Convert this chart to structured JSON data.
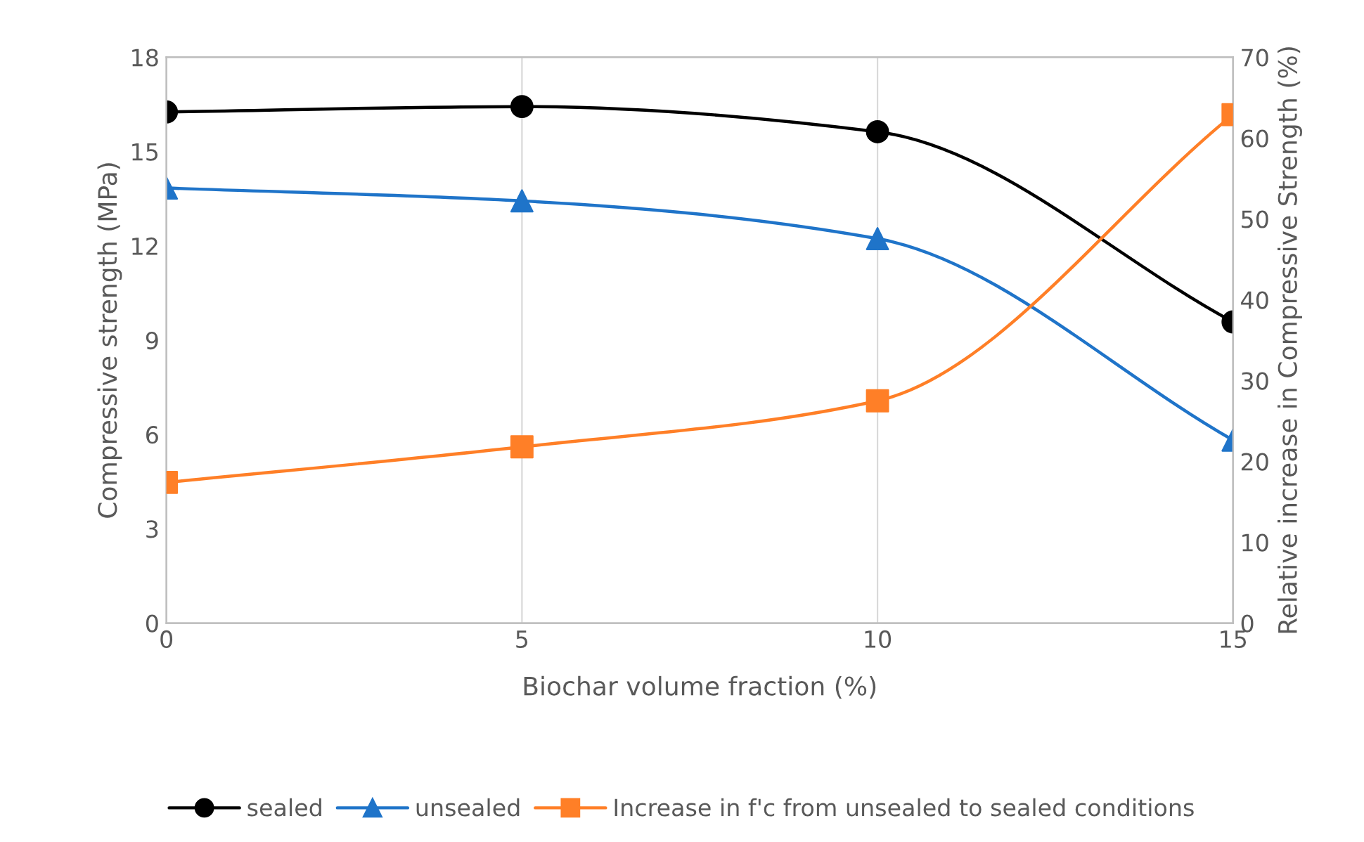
{
  "chart_data": {
    "type": "line",
    "x": [
      0,
      5,
      10,
      15
    ],
    "xlim": [
      0,
      15
    ],
    "xticks": [
      0,
      5,
      10,
      15
    ],
    "xlabel": "Biochar volume fraction (%)",
    "ylabel": "Compressive strength (MPa)",
    "y2label": "Relative increase in Compressive Strength (%)",
    "ylim": [
      0,
      18
    ],
    "yticks": [
      0,
      3,
      6,
      9,
      12,
      15,
      18
    ],
    "y2lim": [
      0,
      70
    ],
    "y2ticks": [
      0,
      10,
      20,
      30,
      40,
      50,
      60,
      70
    ],
    "grid": "x",
    "legend": "bottom",
    "line_style": "solid",
    "series": [
      {
        "name": "sealed",
        "color": "#000000",
        "marker": "circle",
        "values": [
          16.26,
          16.43,
          15.63,
          9.58
        ]
      },
      {
        "name": "unsealed",
        "color": "#1f74c9",
        "marker": "triangle",
        "values": [
          13.84,
          13.43,
          12.23,
          5.82
        ]
      },
      {
        "name": "Increase in f'c from unsealed to sealed conditions",
        "color": "#ff7f27",
        "marker": "square",
        "axis": "y2",
        "values": [
          17.4,
          21.8,
          27.5,
          62.9
        ]
      }
    ]
  }
}
